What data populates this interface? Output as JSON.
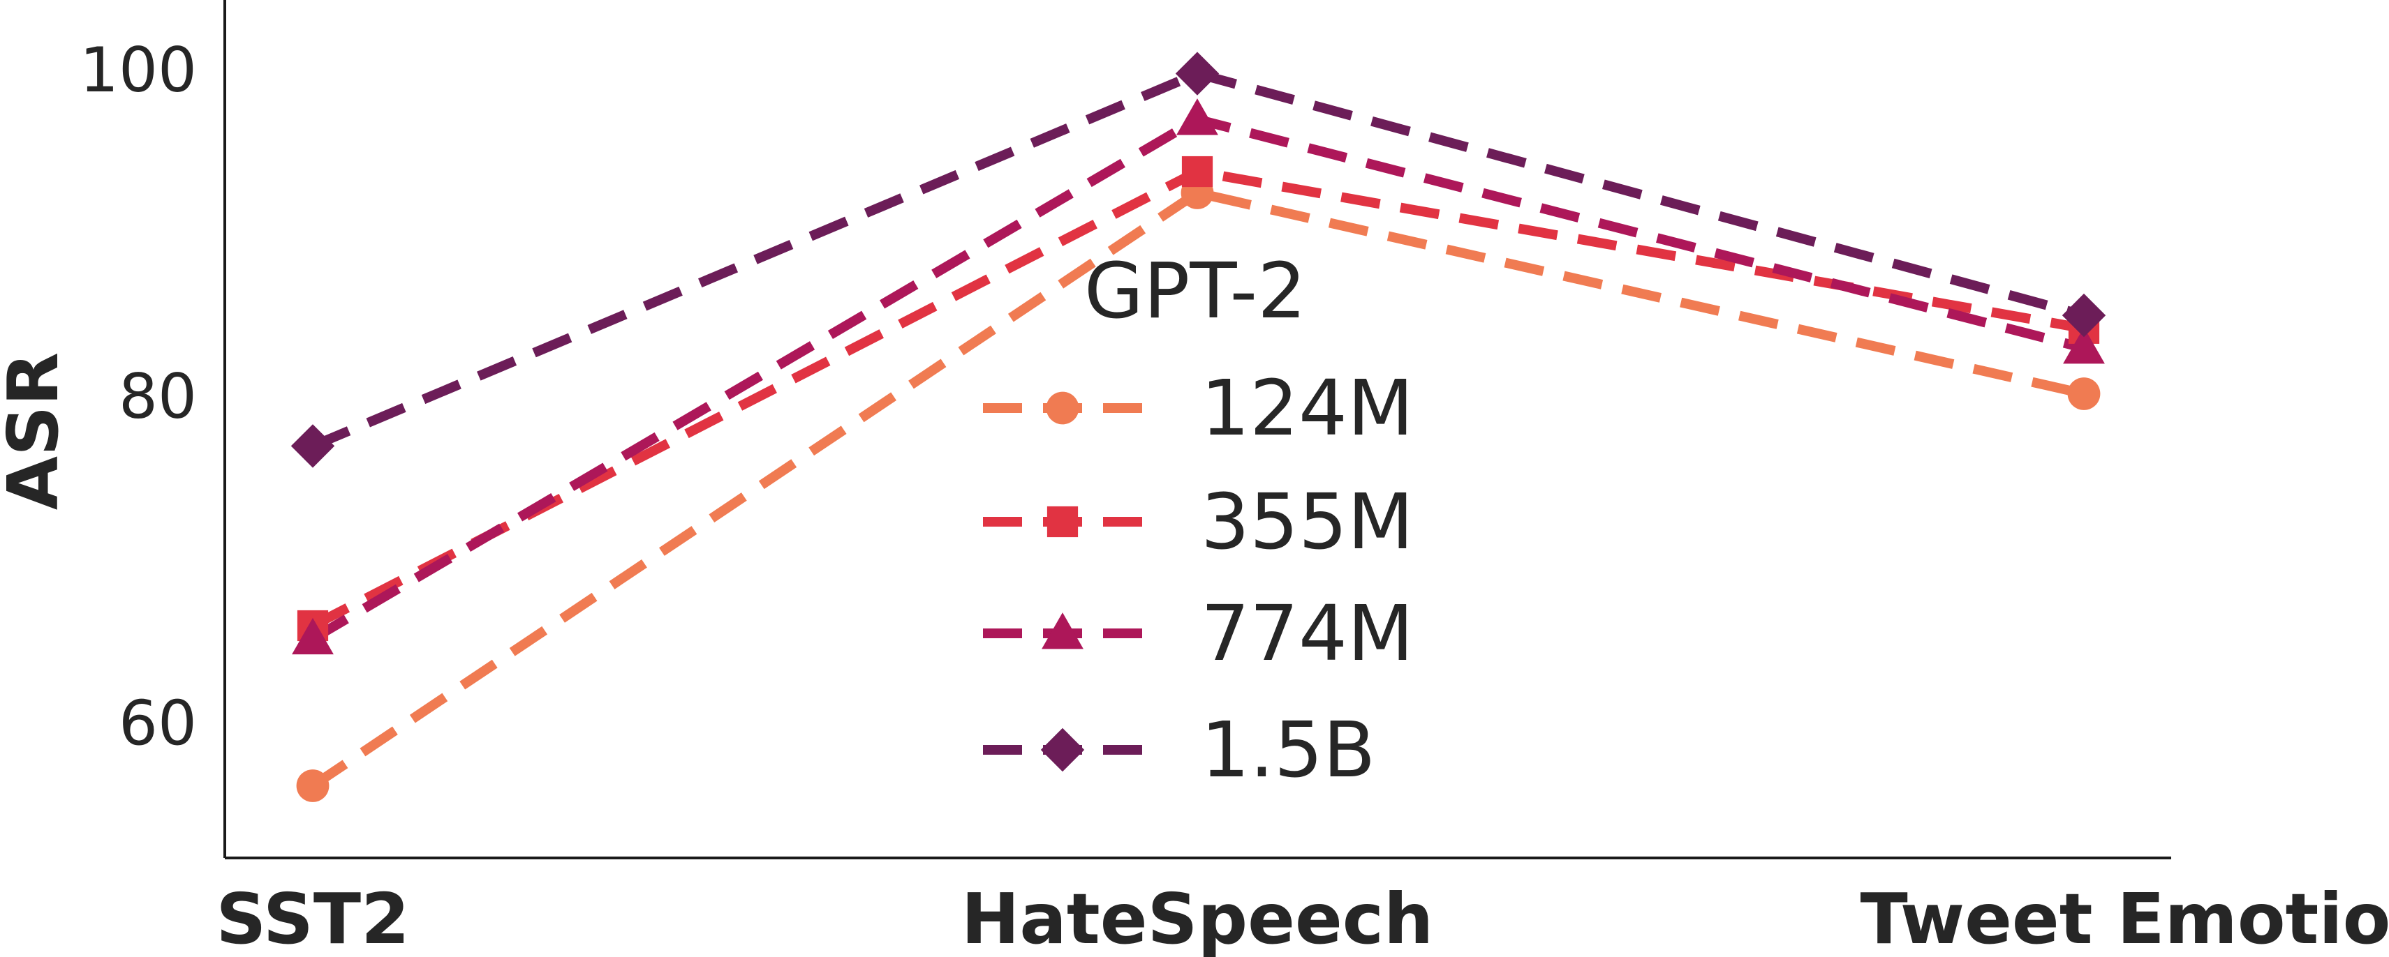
{
  "chart_data": {
    "type": "line",
    "ylabel": "ASR",
    "xlabel": "",
    "categories": [
      "SST2",
      "HateSpeech",
      "Tweet Emotion"
    ],
    "yticks": [
      60,
      80,
      100
    ],
    "ylim": [
      54,
      102
    ],
    "grid": false,
    "legend": {
      "title": "GPT-2",
      "placement": "center"
    },
    "series": [
      {
        "name": "124M",
        "values": [
          56.2,
          92.5,
          80.2
        ],
        "color": "#f07b52",
        "marker": "circle"
      },
      {
        "name": "355M",
        "values": [
          66.0,
          93.8,
          84.2
        ],
        "color": "#e13342",
        "marker": "square"
      },
      {
        "name": "774M",
        "values": [
          65.2,
          97.0,
          83.0
        ],
        "color": "#ad1759",
        "marker": "triangle"
      },
      {
        "name": "1.5B",
        "values": [
          77.0,
          99.8,
          85.0
        ],
        "color": "#6c1d58",
        "marker": "diamond"
      }
    ]
  }
}
